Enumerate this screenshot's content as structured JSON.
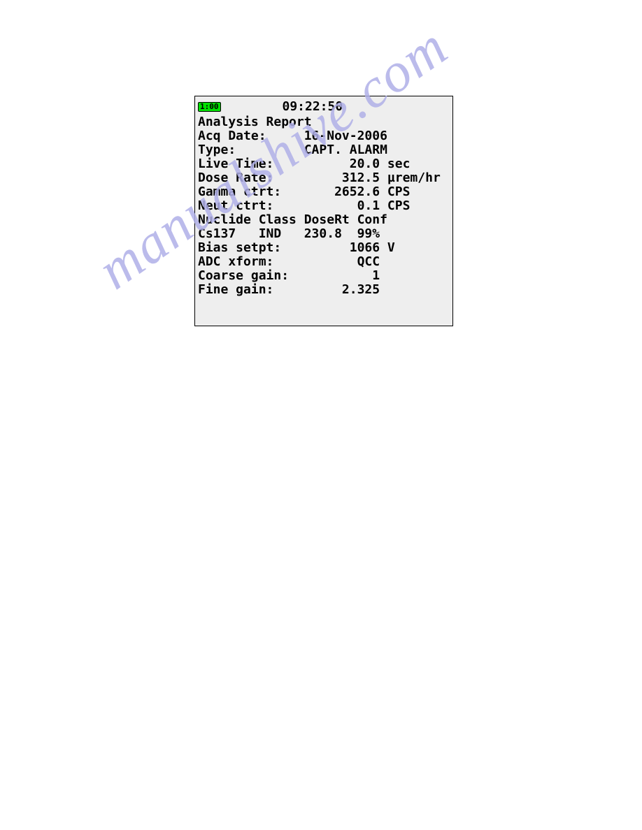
{
  "header": {
    "battery": "1:00",
    "time": "09:22:50"
  },
  "report": {
    "title": "Analysis Report",
    "lines": [
      {
        "label": "Acq Date:",
        "value": "16-Nov-2006",
        "value_col": 14
      },
      {
        "label": "Type:",
        "value": "CAPT. ALARM",
        "value_col": 14
      },
      {
        "label": "Live Time:",
        "value": "20.0",
        "unit": "sec",
        "value_col": 20
      },
      {
        "label": "Dose Rate:",
        "value": "312.5",
        "unit": "µrem/hr",
        "value_col": 19
      },
      {
        "label": "Gamma ctrt:",
        "value": "2652.6",
        "unit": "CPS",
        "value_col": 18
      },
      {
        "label": "Neut ctrt:",
        "value": "0.1",
        "unit": "CPS",
        "value_col": 21
      },
      {
        "label": "Nuclide Class DoseRt Conf",
        "value": "",
        "value_col": 0
      },
      {
        "label": "Cs137   IND   230.8  99%",
        "value": "",
        "value_col": 0
      },
      {
        "label": "Bias setpt:",
        "value": "1066",
        "unit": "V",
        "value_col": 20
      },
      {
        "label": "ADC xform:",
        "value": "QCC",
        "value_col": 21
      },
      {
        "label": "Coarse gain:",
        "value": "1",
        "value_col": 23
      },
      {
        "label": "Fine gain:",
        "value": "2.325",
        "value_col": 19
      }
    ]
  },
  "watermark": "manualshive.com",
  "colors": {
    "screen_bg": "#eeeeee",
    "screen_border": "#000000",
    "text": "#000000",
    "battery_bg": "#00e000",
    "watermark": "#b0b0e8"
  }
}
